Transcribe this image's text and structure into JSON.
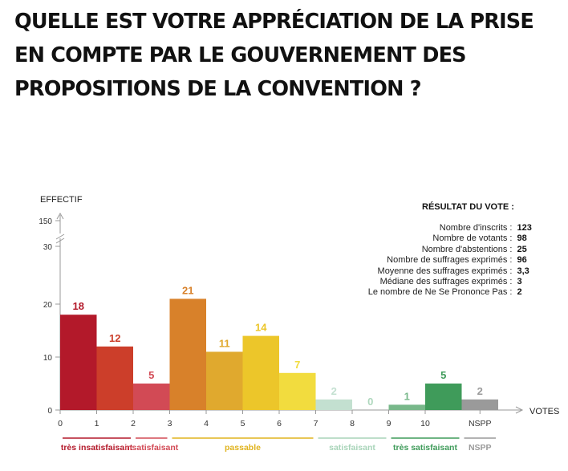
{
  "title_lines": [
    "QUELLE EST VOTRE APPRÉCIATION DE LA PRISE",
    "EN COMPTE PAR LE GOUVERNEMENT DES",
    "PROPOSITIONS DE LA CONVENTION ?"
  ],
  "chart_data": {
    "type": "bar",
    "ylabel": "EFFECTIF",
    "xlabel": "VOTES",
    "y_ticks": [
      "0",
      "10",
      "20",
      "30",
      "150"
    ],
    "x_ticks": [
      "0",
      "1",
      "2",
      "3",
      "4",
      "5",
      "6",
      "7",
      "8",
      "9",
      "10",
      "NSPP"
    ],
    "bars": [
      {
        "value": 18,
        "label": "18",
        "color": "#b3192a"
      },
      {
        "value": 12,
        "label": "12",
        "color": "#cc3e2a"
      },
      {
        "value": 5,
        "label": "5",
        "color": "#d24a55"
      },
      {
        "value": 21,
        "label": "21",
        "color": "#d8812a"
      },
      {
        "value": 11,
        "label": "11",
        "color": "#e0a92e"
      },
      {
        "value": 14,
        "label": "14",
        "color": "#ecc62a"
      },
      {
        "value": 7,
        "label": "7",
        "color": "#f2dc3e"
      },
      {
        "value": 2,
        "label": "2",
        "color": "#c3e0d0"
      },
      {
        "value": 0,
        "label": "0",
        "color": "#aed7bd"
      },
      {
        "value": 1,
        "label": "1",
        "color": "#78b88a"
      },
      {
        "value": 5,
        "label": "5",
        "color": "#3f9b5a"
      },
      {
        "value": 2,
        "label": "2",
        "color": "#9a9a9a"
      }
    ],
    "categories": [
      {
        "label": "très insatisfaisant",
        "color": "#b3192a",
        "from": 0,
        "to": 2
      },
      {
        "label": "insatisfaisant",
        "color": "#d24a55",
        "from": 2,
        "to": 3
      },
      {
        "label": "passable",
        "color": "#e0b31e",
        "from": 3,
        "to": 7
      },
      {
        "label": "satisfaisant",
        "color": "#a8d4b9",
        "from": 7,
        "to": 9
      },
      {
        "label": "très satisfaisant",
        "color": "#3f9b5a",
        "from": 9,
        "to": 11
      },
      {
        "label": "NSPP",
        "color": "#9a9a9a",
        "from": 11,
        "to": 12
      }
    ]
  },
  "result": {
    "title": "RÉSULTAT DU VOTE :",
    "rows": [
      {
        "label": "Nombre d'inscrits :",
        "value": "123"
      },
      {
        "label": "Nombre de votants :",
        "value": "98"
      },
      {
        "label": "Nombre d'abstentions :",
        "value": "25"
      },
      {
        "label": "Nombre de suffrages exprimés :",
        "value": "96"
      },
      {
        "label": "Moyenne des suffrages exprimés :",
        "value": "3,3"
      },
      {
        "label": "Médiane des suffrages exprimés :",
        "value": "3"
      },
      {
        "label": "Le nombre de Ne Se Prononce Pas :",
        "value": "2"
      }
    ]
  }
}
